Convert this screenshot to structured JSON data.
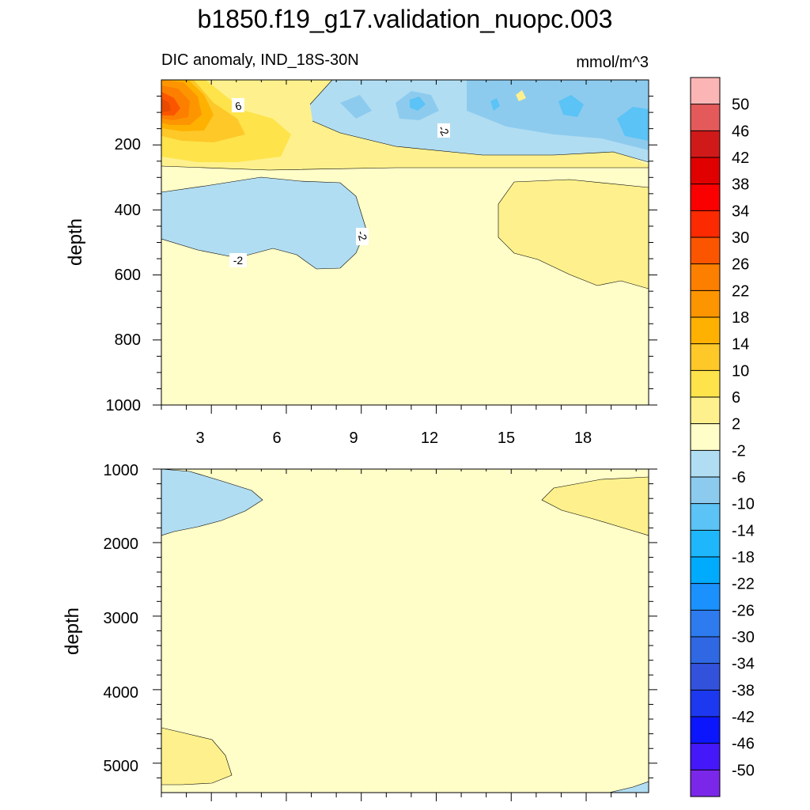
{
  "title": "b1850.f19_g17.validation_nuopc.003",
  "subtitle_left": "DIC anomaly, IND_18S-30N",
  "subtitle_right": "mmol/m^3",
  "chart_data": [
    {
      "type": "contour",
      "panel": "upper",
      "ylabel": "depth",
      "xlim": [
        1,
        20.5
      ],
      "ylim": [
        0,
        1000
      ],
      "y_reversed": true,
      "x_ticks": [
        "3",
        "6",
        "9",
        "12",
        "15",
        "18"
      ],
      "y_ticks": [
        "200",
        "400",
        "600",
        "800",
        "1000"
      ],
      "contour_labels": [
        "6",
        "-2",
        "-2",
        "-2"
      ]
    },
    {
      "type": "contour",
      "panel": "lower",
      "ylabel": "depth",
      "xlim": [
        1,
        20.5
      ],
      "ylim": [
        1000,
        5400
      ],
      "y_reversed": true,
      "y_ticks": [
        "1000",
        "2000",
        "3000",
        "4000",
        "5000"
      ]
    }
  ],
  "colorbar": {
    "labels": [
      "50",
      "46",
      "42",
      "38",
      "34",
      "30",
      "26",
      "22",
      "18",
      "14",
      "10",
      "6",
      "2",
      "-2",
      "-6",
      "-10",
      "-14",
      "-18",
      "-22",
      "-26",
      "-30",
      "-34",
      "-38",
      "-42",
      "-46",
      "-50"
    ],
    "colors": [
      "#fcb5b5",
      "#e45a5a",
      "#d01a1a",
      "#e00000",
      "#fa0000",
      "#fc2a00",
      "#fc5500",
      "#fc7f00",
      "#fd9500",
      "#feb100",
      "#fec829",
      "#fee34b",
      "#fef18d",
      "#fffdc8",
      "#b1ddf2",
      "#8dcbee",
      "#5bc3f5",
      "#1fb7fb",
      "#00aafc",
      "#1b91fd",
      "#2d7bef",
      "#3068e4",
      "#3352dc",
      "#1d39f0",
      "#0c16fc",
      "#4418f9",
      "#7b27e9"
    ]
  },
  "colors": {
    "bg_level": "#fffdc8",
    "pos2": "#fef18d",
    "pos6": "#fee34b",
    "pos10": "#fec829",
    "pos14": "#feb100",
    "pos18": "#fd9500",
    "pos22": "#fc7f00",
    "pos26": "#fc5500",
    "pos30": "#e84a00",
    "neg2": "#b1ddf2",
    "neg6": "#8dcbee",
    "neg10": "#5bc3f5"
  }
}
